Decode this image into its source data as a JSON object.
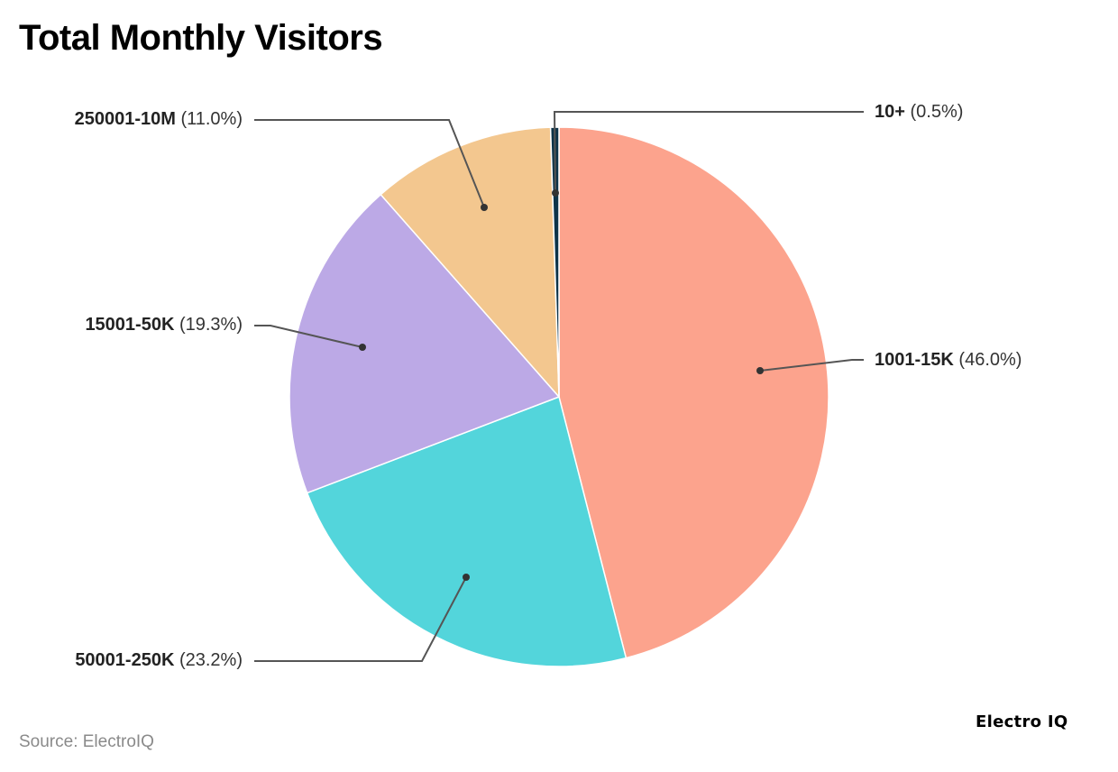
{
  "title": "Total Monthly Visitors",
  "source": "Source: ElectroIQ",
  "brand": "Electro IQ",
  "labels": {
    "s0": {
      "name": "1001-15K",
      "pct": "(46.0%)"
    },
    "s1": {
      "name": "50001-250K",
      "pct": "(23.2%)"
    },
    "s2": {
      "name": "15001-50K",
      "pct": "(19.3%)"
    },
    "s3": {
      "name": "250001-10M",
      "pct": "(11.0%)"
    },
    "s4": {
      "name": "10+",
      "pct": "(0.5%)"
    }
  },
  "chart_data": {
    "type": "pie",
    "title": "Total Monthly Visitors",
    "categories": [
      "1001-15K",
      "50001-250K",
      "15001-50K",
      "250001-10M",
      "10+"
    ],
    "values": [
      46.0,
      23.2,
      19.3,
      11.0,
      0.5
    ],
    "unit": "%",
    "colors": [
      "#FCA38D",
      "#53D5DB",
      "#BCA9E6",
      "#F3C78F",
      "#0D3348"
    ],
    "start_angle": "12 o'clock, clockwise",
    "legend": "none (leader-line labels)",
    "source": "Source: ElectroIQ"
  }
}
